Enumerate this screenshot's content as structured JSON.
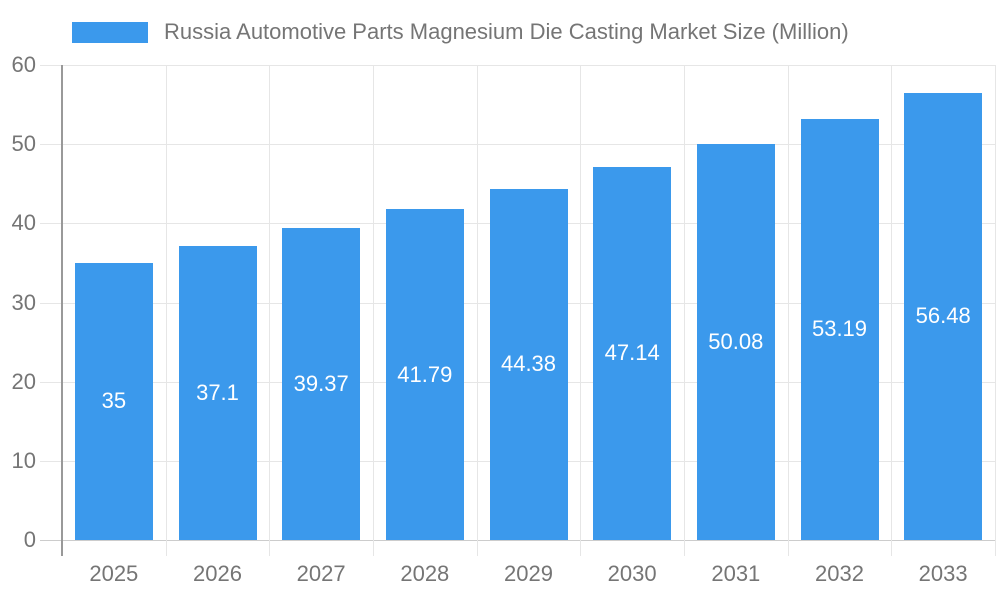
{
  "chart_data": {
    "type": "bar",
    "title": "Russia Automotive Parts Magnesium Die Casting Market Size (Million)",
    "categories": [
      "2025",
      "2026",
      "2027",
      "2028",
      "2029",
      "2030",
      "2031",
      "2032",
      "2033"
    ],
    "values": [
      35,
      37.1,
      39.37,
      41.79,
      44.38,
      47.14,
      50.08,
      53.19,
      56.48
    ],
    "bar_value_labels": [
      "35",
      "37.1",
      "39.37",
      "41.79",
      "44.38",
      "47.14",
      "50.08",
      "53.19",
      "56.48"
    ],
    "xlabel": "",
    "ylabel": "",
    "ylim": [
      0,
      60
    ],
    "yticks": [
      0,
      10,
      20,
      30,
      40,
      50,
      60
    ],
    "grid": true,
    "legend_position": "top-left",
    "colors": {
      "bar": "#3B99EC",
      "bar_value_text": "#FFFFFF",
      "axis_text": "#757575",
      "title_text": "#757575",
      "gridline": "#E6E6E6",
      "y_axis_line": "#999999",
      "x_axis_line": "#CCCCCC",
      "background": "#FFFFFF"
    }
  }
}
